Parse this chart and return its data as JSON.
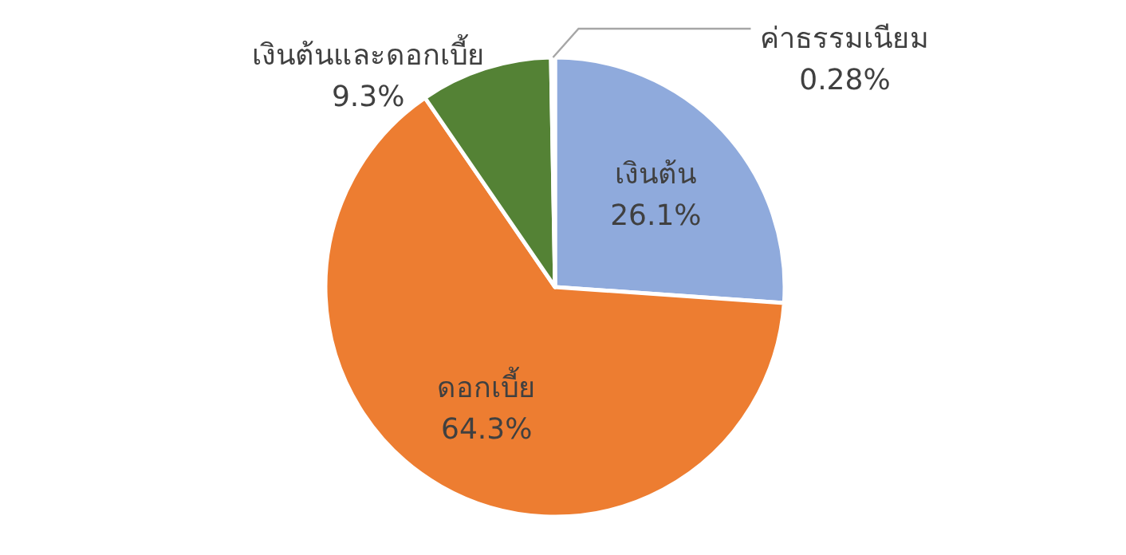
{
  "chart_data": {
    "type": "pie",
    "categories": [
      "เงินต้น",
      "ดอกเบี้ย",
      "เงินต้นและดอกเบี้ย",
      "ค่าธรรมเนียม"
    ],
    "values": [
      26.1,
      64.3,
      9.3,
      0.28
    ],
    "colors": [
      "#8faadc",
      "#ed7d31",
      "#548235",
      "#a5a5a5"
    ],
    "value_labels": [
      "26.1%",
      "64.3%",
      "9.3%",
      "0.28%"
    ],
    "legend": false
  }
}
